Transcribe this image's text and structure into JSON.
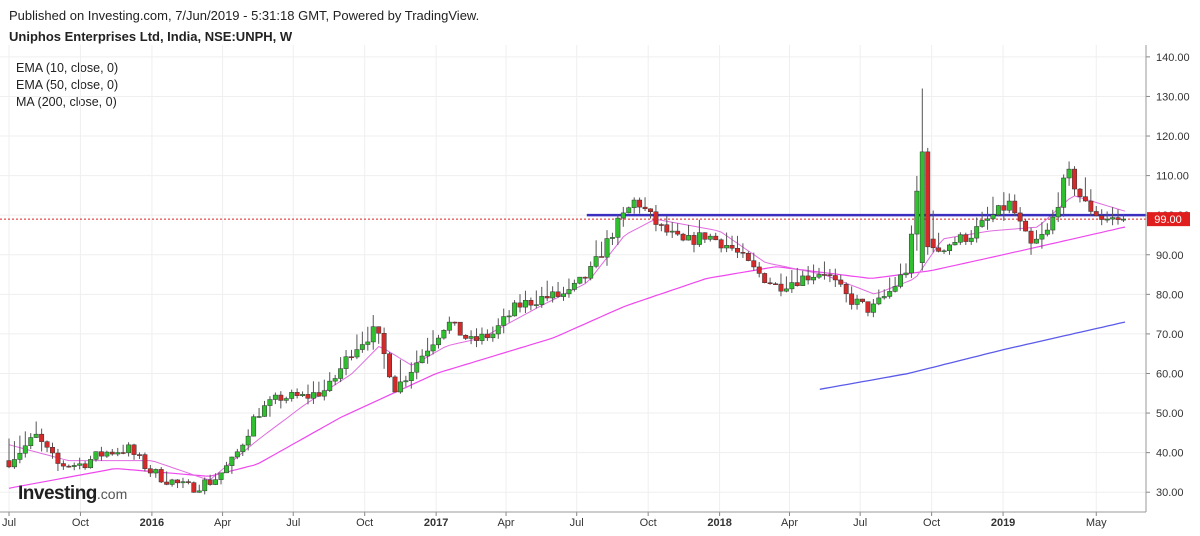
{
  "header": {
    "published": "Published on Investing.com, 7/Jun/2019 - 5:31:18 GMT, Powered by TradingView.",
    "title": "Uniphos Enterprises Ltd, India, NSE:UNPH, W"
  },
  "indicators": [
    "EMA (10, close, 0)",
    "EMA (50, close, 0)",
    "MA (200, close, 0)"
  ],
  "logo": {
    "main": "Investing",
    "suffix": ".com"
  },
  "colors": {
    "up": "#2fbf2f",
    "down": "#d42a2a",
    "ema10": "#e06ce0",
    "ema50": "#ee48ee",
    "ma200": "#5b5bea",
    "hline": "#3b2fbf",
    "last_price_box": "#e01e1e",
    "grid": "#efefef"
  },
  "chart_data": {
    "type": "candlestick",
    "interval": "weekly",
    "y_axis": {
      "min": 25,
      "max": 143,
      "ticks": [
        "30.00",
        "40.00",
        "50.00",
        "60.00",
        "70.00",
        "80.00",
        "90.00",
        "100.00",
        "110.00",
        "120.00",
        "130.00",
        "140.00"
      ],
      "position": "right"
    },
    "x_axis": {
      "labels": [
        {
          "label": "Jul",
          "date": "2015-07-01"
        },
        {
          "label": "Oct",
          "date": "2015-10-01"
        },
        {
          "label": "2016",
          "date": "2016-01-01",
          "bold": true
        },
        {
          "label": "Apr",
          "date": "2016-04-01"
        },
        {
          "label": "Jul",
          "date": "2016-07-01"
        },
        {
          "label": "Oct",
          "date": "2016-10-01"
        },
        {
          "label": "2017",
          "date": "2017-01-01",
          "bold": true
        },
        {
          "label": "Apr",
          "date": "2017-04-01"
        },
        {
          "label": "Jul",
          "date": "2017-07-01"
        },
        {
          "label": "Oct",
          "date": "2017-10-01"
        },
        {
          "label": "2018",
          "date": "2018-01-01",
          "bold": true
        },
        {
          "label": "Apr",
          "date": "2018-04-01"
        },
        {
          "label": "Jul",
          "date": "2018-07-01"
        },
        {
          "label": "Oct",
          "date": "2018-10-01"
        },
        {
          "label": "2019",
          "date": "2019-01-01",
          "bold": true
        },
        {
          "label": "May",
          "date": "2019-05-01"
        }
      ],
      "start": "2015-07-01",
      "end": "2019-06-07"
    },
    "last_price": {
      "value": 99.0,
      "label": "99.00"
    },
    "horizontal_line": {
      "value": 100.0,
      "from": "2017-07-14",
      "to": "2019-06-07"
    },
    "anchors": [
      {
        "date": "2015-07-01",
        "close": 38,
        "high": 49,
        "low": 35
      },
      {
        "date": "2015-08-05",
        "close": 44,
        "high": 53,
        "low": 38
      },
      {
        "date": "2015-09-01",
        "close": 37,
        "high": 42,
        "low": 34
      },
      {
        "date": "2015-10-01",
        "close": 37,
        "high": 41,
        "low": 34
      },
      {
        "date": "2015-11-01",
        "close": 40,
        "high": 44,
        "low": 37
      },
      {
        "date": "2015-12-01",
        "close": 41,
        "high": 44,
        "low": 38
      },
      {
        "date": "2016-01-01",
        "close": 35,
        "high": 40,
        "low": 32
      },
      {
        "date": "2016-02-15",
        "close": 31,
        "high": 34,
        "low": 28
      },
      {
        "date": "2016-03-20",
        "close": 33,
        "high": 36,
        "low": 30
      },
      {
        "date": "2016-04-15",
        "close": 38,
        "high": 40,
        "low": 33
      },
      {
        "date": "2016-05-15",
        "close": 50,
        "high": 53,
        "low": 42
      },
      {
        "date": "2016-06-15",
        "close": 54,
        "high": 57,
        "low": 48
      },
      {
        "date": "2016-07-15",
        "close": 54,
        "high": 58,
        "low": 50
      },
      {
        "date": "2016-08-15",
        "close": 56,
        "high": 66,
        "low": 52
      },
      {
        "date": "2016-09-15",
        "close": 66,
        "high": 75,
        "low": 60
      },
      {
        "date": "2016-10-15",
        "close": 71,
        "high": 78,
        "low": 64
      },
      {
        "date": "2016-11-10",
        "close": 56,
        "high": 68,
        "low": 50
      },
      {
        "date": "2016-12-15",
        "close": 65,
        "high": 72,
        "low": 58
      },
      {
        "date": "2017-01-15",
        "close": 73,
        "high": 78,
        "low": 68
      },
      {
        "date": "2017-02-15",
        "close": 68,
        "high": 73,
        "low": 64
      },
      {
        "date": "2017-03-15",
        "close": 70,
        "high": 76,
        "low": 66
      },
      {
        "date": "2017-04-15",
        "close": 77,
        "high": 82,
        "low": 72
      },
      {
        "date": "2017-05-15",
        "close": 79,
        "high": 85,
        "low": 75
      },
      {
        "date": "2017-06-20",
        "close": 80,
        "high": 96,
        "low": 77
      },
      {
        "date": "2017-07-20",
        "close": 86,
        "high": 100,
        "low": 80
      },
      {
        "date": "2017-08-20",
        "close": 97,
        "high": 101,
        "low": 89
      },
      {
        "date": "2017-09-15",
        "close": 104,
        "high": 110,
        "low": 97
      },
      {
        "date": "2017-10-15",
        "close": 97,
        "high": 104,
        "low": 93
      },
      {
        "date": "2017-11-15",
        "close": 93,
        "high": 99,
        "low": 88
      },
      {
        "date": "2017-12-15",
        "close": 95,
        "high": 103,
        "low": 90
      },
      {
        "date": "2018-01-15",
        "close": 92,
        "high": 99,
        "low": 88
      },
      {
        "date": "2018-02-15",
        "close": 86,
        "high": 94,
        "low": 82
      },
      {
        "date": "2018-03-15",
        "close": 82,
        "high": 88,
        "low": 78
      },
      {
        "date": "2018-04-15",
        "close": 84,
        "high": 90,
        "low": 80
      },
      {
        "date": "2018-05-15",
        "close": 86,
        "high": 92,
        "low": 81
      },
      {
        "date": "2018-06-15",
        "close": 79,
        "high": 85,
        "low": 75
      },
      {
        "date": "2018-07-15",
        "close": 76,
        "high": 80,
        "low": 73
      },
      {
        "date": "2018-08-10",
        "close": 81,
        "high": 90,
        "low": 78
      },
      {
        "date": "2018-09-01",
        "close": 87,
        "high": 93,
        "low": 82
      },
      {
        "date": "2018-09-18",
        "close": 116,
        "high": 132,
        "low": 90
      },
      {
        "date": "2018-09-28",
        "close": 90,
        "high": 118,
        "low": 85
      },
      {
        "date": "2018-10-25",
        "close": 93,
        "high": 98,
        "low": 88
      },
      {
        "date": "2018-11-20",
        "close": 95,
        "high": 100,
        "low": 90
      },
      {
        "date": "2018-12-20",
        "close": 100,
        "high": 109,
        "low": 92
      },
      {
        "date": "2019-01-10",
        "close": 103,
        "high": 110,
        "low": 95
      },
      {
        "date": "2019-02-05",
        "close": 92,
        "high": 99,
        "low": 82
      },
      {
        "date": "2019-03-01",
        "close": 96,
        "high": 102,
        "low": 90
      },
      {
        "date": "2019-03-25",
        "close": 111,
        "high": 118,
        "low": 103
      },
      {
        "date": "2019-04-15",
        "close": 103,
        "high": 116,
        "low": 98
      },
      {
        "date": "2019-05-10",
        "close": 99,
        "high": 106,
        "low": 93
      },
      {
        "date": "2019-06-07",
        "close": 99,
        "high": 103,
        "low": 97
      }
    ],
    "ema10_anchors": [
      {
        "date": "2015-07-01",
        "value": 42
      },
      {
        "date": "2015-09-15",
        "value": 38
      },
      {
        "date": "2016-01-01",
        "value": 38
      },
      {
        "date": "2016-03-15",
        "value": 33
      },
      {
        "date": "2016-05-15",
        "value": 43
      },
      {
        "date": "2016-07-15",
        "value": 52
      },
      {
        "date": "2016-09-15",
        "value": 60
      },
      {
        "date": "2016-10-20",
        "value": 67
      },
      {
        "date": "2016-12-01",
        "value": 62
      },
      {
        "date": "2017-01-15",
        "value": 67
      },
      {
        "date": "2017-03-01",
        "value": 69
      },
      {
        "date": "2017-05-15",
        "value": 77
      },
      {
        "date": "2017-07-15",
        "value": 83
      },
      {
        "date": "2017-09-01",
        "value": 95
      },
      {
        "date": "2017-10-10",
        "value": 99
      },
      {
        "date": "2018-01-01",
        "value": 96
      },
      {
        "date": "2018-03-01",
        "value": 88
      },
      {
        "date": "2018-05-15",
        "value": 85
      },
      {
        "date": "2018-07-20",
        "value": 80
      },
      {
        "date": "2018-09-10",
        "value": 84
      },
      {
        "date": "2018-10-15",
        "value": 94
      },
      {
        "date": "2018-12-15",
        "value": 96
      },
      {
        "date": "2019-02-15",
        "value": 97
      },
      {
        "date": "2019-04-01",
        "value": 105
      },
      {
        "date": "2019-06-07",
        "value": 101
      }
    ],
    "ema50_anchors": [
      {
        "date": "2015-07-01",
        "value": 31
      },
      {
        "date": "2015-11-15",
        "value": 36
      },
      {
        "date": "2016-03-15",
        "value": 34
      },
      {
        "date": "2016-05-15",
        "value": 37
      },
      {
        "date": "2016-09-01",
        "value": 49
      },
      {
        "date": "2017-01-01",
        "value": 60
      },
      {
        "date": "2017-06-01",
        "value": 69
      },
      {
        "date": "2017-09-01",
        "value": 77
      },
      {
        "date": "2017-12-15",
        "value": 84
      },
      {
        "date": "2018-03-15",
        "value": 87
      },
      {
        "date": "2018-07-15",
        "value": 84
      },
      {
        "date": "2018-10-01",
        "value": 86
      },
      {
        "date": "2019-01-01",
        "value": 90
      },
      {
        "date": "2019-04-01",
        "value": 94
      },
      {
        "date": "2019-06-07",
        "value": 97
      }
    ],
    "ma200_anchors": [
      {
        "date": "2018-05-10",
        "value": 56
      },
      {
        "date": "2018-09-01",
        "value": 60
      },
      {
        "date": "2019-01-01",
        "value": 66
      },
      {
        "date": "2019-06-07",
        "value": 73
      }
    ]
  }
}
